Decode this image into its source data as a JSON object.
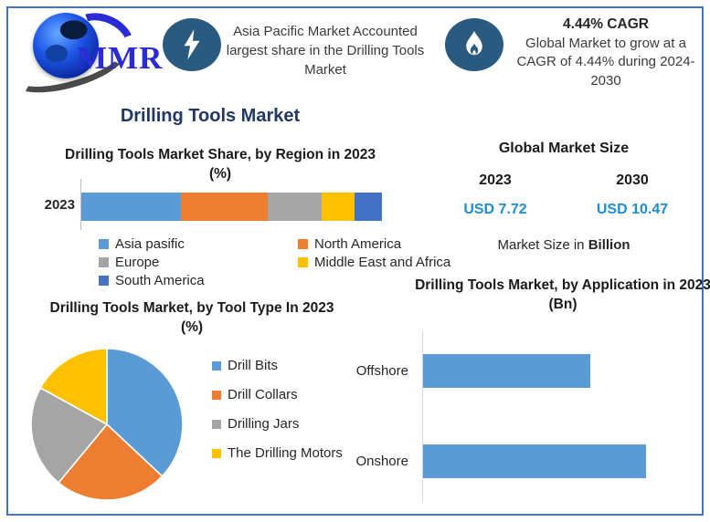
{
  "header": {
    "logo_text": "MMR",
    "icon_bg": "#2A5A7F",
    "highlight1": {
      "icon": "lightning-icon",
      "text": "Asia Pacific Market Accounted largest share in the Drilling Tools Market"
    },
    "highlight2": {
      "icon": "flame-icon",
      "title": "4.44% CAGR",
      "text": "Global Market to grow at a CAGR of 4.44% during 2024-2030"
    }
  },
  "main_title": "Drilling Tools Market",
  "market_size": {
    "title": "Global Market Size",
    "columns": [
      {
        "year": "2023",
        "value": "USD 7.72"
      },
      {
        "year": "2030",
        "value": "USD 10.47"
      }
    ],
    "note_prefix": "Market Size in ",
    "note_bold": "Billion",
    "value_color": "#1C8DCE"
  },
  "chart_data": [
    {
      "type": "bar",
      "stacked": true,
      "orientation": "horizontal",
      "title": "Drilling Tools Market Share, by Region in 2023 (%)",
      "categories": [
        "2023"
      ],
      "series": [
        {
          "name": "Asia pasific",
          "color": "#5B9BD5",
          "values": [
            33
          ]
        },
        {
          "name": "North America",
          "color": "#ED7D31",
          "values": [
            29
          ]
        },
        {
          "name": "Europe",
          "color": "#A5A5A5",
          "values": [
            18
          ]
        },
        {
          "name": "Middle East and Africa",
          "color": "#FFC000",
          "values": [
            11
          ]
        },
        {
          "name": "South America",
          "color": "#4472C4",
          "values": [
            9
          ]
        }
      ],
      "xlim": [
        0,
        100
      ],
      "legend_position": "bottom",
      "grid": false
    },
    {
      "type": "pie",
      "title": "Drilling Tools Market, by Tool Type In 2023 (%)",
      "labels": [
        "Drill Bits",
        "Drill Collars",
        "Drilling Jars",
        "The Drilling Motors"
      ],
      "values": [
        37,
        24,
        22,
        17
      ],
      "colors": [
        "#5B9BD5",
        "#ED7D31",
        "#A5A5A5",
        "#FFC000"
      ],
      "start_angle_deg": 0,
      "legend_position": "right"
    },
    {
      "type": "bar",
      "orientation": "horizontal",
      "title": "Drilling Tools Market, by Application in 2023 (Bn)",
      "categories": [
        "Offshore",
        "Onshore"
      ],
      "values": [
        3.3,
        4.4
      ],
      "color": "#5B9BD5",
      "xlim": [
        0,
        5.5
      ],
      "grid": false
    }
  ]
}
